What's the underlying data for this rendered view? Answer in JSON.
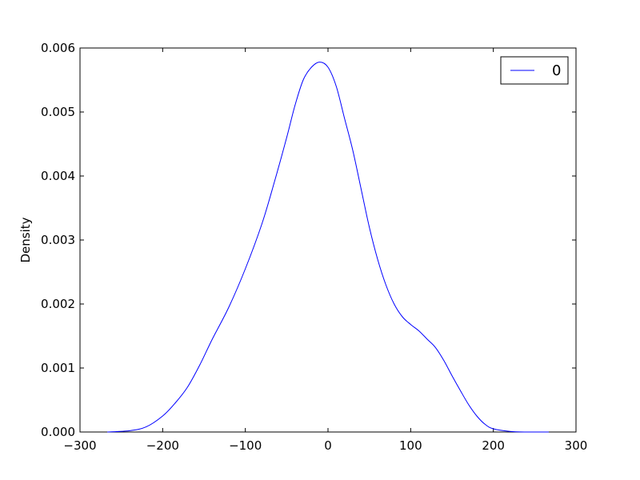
{
  "chart_data": {
    "type": "line",
    "title": "",
    "xlabel": "",
    "ylabel": "Density",
    "xlim": [
      -300,
      300
    ],
    "ylim": [
      0,
      0.006
    ],
    "grid": false,
    "legend_position": "top-right",
    "x_ticks": [
      {
        "value": -300,
        "label": "−300"
      },
      {
        "value": -200,
        "label": "−200"
      },
      {
        "value": -100,
        "label": "−100"
      },
      {
        "value": 0,
        "label": "0"
      },
      {
        "value": 100,
        "label": "100"
      },
      {
        "value": 200,
        "label": "200"
      },
      {
        "value": 300,
        "label": "300"
      }
    ],
    "y_ticks": [
      {
        "value": 0.0,
        "label": "0.000"
      },
      {
        "value": 0.001,
        "label": "0.001"
      },
      {
        "value": 0.002,
        "label": "0.002"
      },
      {
        "value": 0.003,
        "label": "0.003"
      },
      {
        "value": 0.004,
        "label": "0.004"
      },
      {
        "value": 0.005,
        "label": "0.005"
      },
      {
        "value": 0.006,
        "label": "0.006"
      }
    ],
    "series": [
      {
        "name": "0",
        "color": "#0000ff",
        "points": [
          [
            -267,
            0.0
          ],
          [
            -240,
            2e-05
          ],
          [
            -220,
            8e-05
          ],
          [
            -200,
            0.00025
          ],
          [
            -185,
            0.00045
          ],
          [
            -170,
            0.0007
          ],
          [
            -155,
            0.00105
          ],
          [
            -140,
            0.00145
          ],
          [
            -120,
            0.00195
          ],
          [
            -100,
            0.00255
          ],
          [
            -80,
            0.00325
          ],
          [
            -65,
            0.0039
          ],
          [
            -50,
            0.0046
          ],
          [
            -40,
            0.0051
          ],
          [
            -30,
            0.0055
          ],
          [
            -20,
            0.0057
          ],
          [
            -10,
            0.00578
          ],
          [
            0,
            0.0057
          ],
          [
            10,
            0.0054
          ],
          [
            20,
            0.0049
          ],
          [
            30,
            0.0044
          ],
          [
            40,
            0.0038
          ],
          [
            50,
            0.0032
          ],
          [
            60,
            0.0027
          ],
          [
            70,
            0.0023
          ],
          [
            80,
            0.002
          ],
          [
            90,
            0.0018
          ],
          [
            100,
            0.00168
          ],
          [
            110,
            0.00158
          ],
          [
            120,
            0.00145
          ],
          [
            130,
            0.00132
          ],
          [
            140,
            0.00112
          ],
          [
            150,
            0.00088
          ],
          [
            160,
            0.00065
          ],
          [
            170,
            0.00043
          ],
          [
            180,
            0.00025
          ],
          [
            190,
            0.00012
          ],
          [
            200,
            5e-05
          ],
          [
            220,
            1e-05
          ],
          [
            240,
            0.0
          ],
          [
            267,
            0.0
          ]
        ]
      }
    ]
  }
}
